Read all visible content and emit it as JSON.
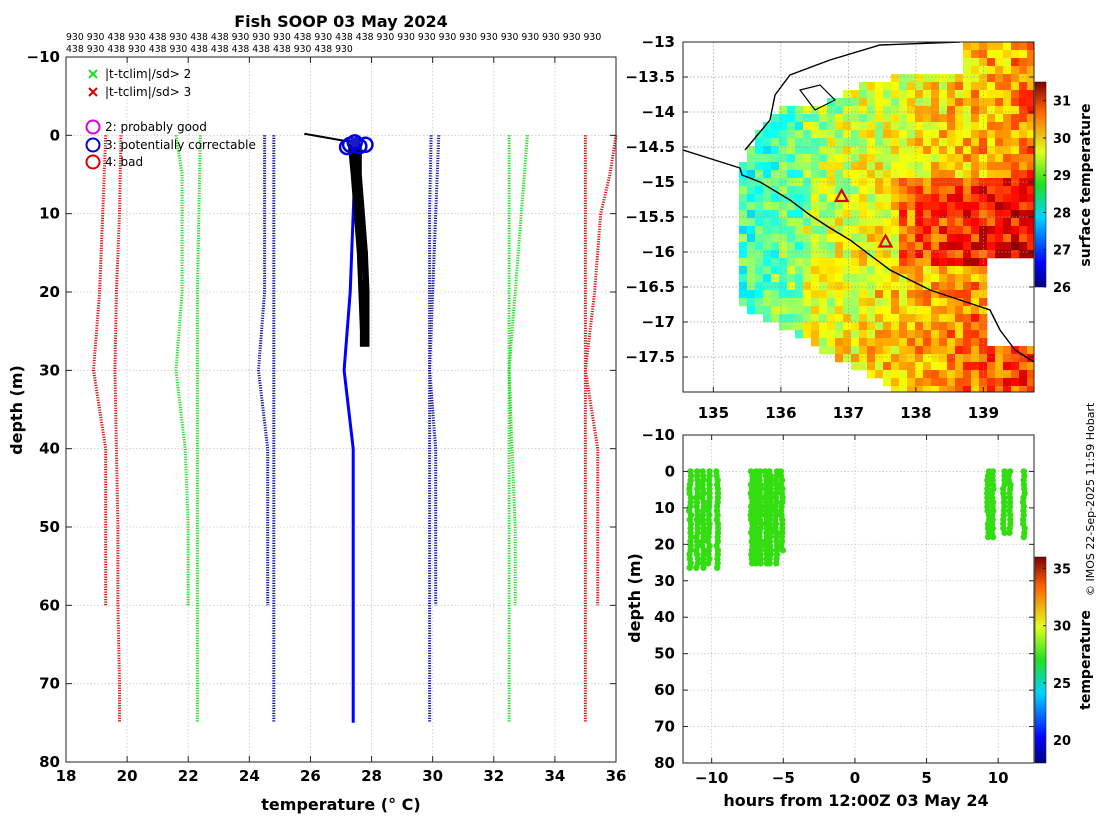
{
  "figure": {
    "title": "Fish SOOP 03 May 2024",
    "credit": "© IMOS 22-Sep-2025 11:59 Hobart",
    "id_row1": "930 930 438 930 438 930 438 438 930 930 930 438 930 438 438 930 930 930 930 930 930 930 930 930 930 930",
    "id_row2": "438 930 438 930 438 930 438 438 438 438 438 930 438 930"
  },
  "chart_data": [
    {
      "name": "profiles",
      "type": "line",
      "xlabel": "temperature (° C)",
      "ylabel": "depth (m)",
      "xlim": [
        18,
        36
      ],
      "ylim": [
        -10,
        80
      ],
      "y_reversed": true,
      "xticks": [
        18,
        20,
        22,
        24,
        26,
        28,
        30,
        32,
        34,
        36
      ],
      "yticks": [
        -10,
        0,
        10,
        20,
        30,
        40,
        50,
        60,
        70,
        80
      ],
      "grid": true,
      "legend_location": "top-left",
      "legend": [
        {
          "marker": "x",
          "color": "#22dd22",
          "label": "|t-tclim|/sd> 2"
        },
        {
          "marker": "x",
          "color": "#dd0000",
          "label": "|t-tclim|/sd> 3"
        },
        {
          "marker": "o",
          "color": "#dd00dd",
          "label": "2: probably good"
        },
        {
          "marker": "o",
          "color": "#0000cc",
          "label": "3: potentially correctable"
        },
        {
          "marker": "o",
          "color": "#dd0000",
          "label": "4: bad"
        }
      ],
      "climatology_lines": [
        {
          "color": "#dd1111",
          "points": [
            [
              19.8,
              0
            ],
            [
              19.75,
              10
            ],
            [
              19.65,
              20
            ],
            [
              19.6,
              30
            ],
            [
              19.65,
              40
            ],
            [
              19.7,
              50
            ],
            [
              19.7,
              60
            ],
            [
              19.75,
              70
            ],
            [
              19.75,
              75
            ]
          ]
        },
        {
          "color": "#dd1111",
          "points": [
            [
              19.3,
              0
            ],
            [
              19.2,
              10
            ],
            [
              19.1,
              20
            ],
            [
              18.9,
              30
            ],
            [
              19.3,
              40
            ],
            [
              19.3,
              50
            ],
            [
              19.3,
              60
            ]
          ]
        },
        {
          "color": "#22dd22",
          "points": [
            [
              22.4,
              0
            ],
            [
              22.35,
              10
            ],
            [
              22.3,
              20
            ],
            [
              22.3,
              30
            ],
            [
              22.3,
              40
            ],
            [
              22.3,
              50
            ],
            [
              22.3,
              60
            ],
            [
              22.3,
              70
            ],
            [
              22.3,
              75
            ]
          ]
        },
        {
          "color": "#22dd22",
          "points": [
            [
              21.6,
              0
            ],
            [
              21.8,
              5
            ],
            [
              21.8,
              10
            ],
            [
              21.8,
              20
            ],
            [
              21.6,
              30
            ],
            [
              21.9,
              40
            ],
            [
              22.0,
              50
            ],
            [
              22.0,
              60
            ]
          ]
        },
        {
          "color": "#1111aa",
          "points": [
            [
              24.8,
              0
            ],
            [
              24.8,
              10
            ],
            [
              24.8,
              20
            ],
            [
              24.8,
              30
            ],
            [
              24.8,
              40
            ],
            [
              24.8,
              50
            ],
            [
              24.8,
              60
            ],
            [
              24.8,
              70
            ],
            [
              24.8,
              75
            ]
          ]
        },
        {
          "color": "#1111aa",
          "points": [
            [
              24.5,
              0
            ],
            [
              24.5,
              10
            ],
            [
              24.5,
              20
            ],
            [
              24.3,
              30
            ],
            [
              24.6,
              40
            ],
            [
              24.6,
              50
            ],
            [
              24.6,
              60
            ]
          ]
        },
        {
          "color": "#1111aa",
          "points": [
            [
              29.95,
              0
            ],
            [
              29.9,
              10
            ],
            [
              29.9,
              20
            ],
            [
              29.9,
              30
            ],
            [
              29.9,
              40
            ],
            [
              29.9,
              50
            ],
            [
              29.9,
              60
            ],
            [
              29.9,
              70
            ],
            [
              29.9,
              75
            ]
          ]
        },
        {
          "color": "#1111aa",
          "points": [
            [
              30.2,
              0
            ],
            [
              30.1,
              10
            ],
            [
              30.0,
              20
            ],
            [
              29.9,
              30
            ],
            [
              30.1,
              40
            ],
            [
              30.1,
              50
            ],
            [
              30.1,
              60
            ]
          ]
        },
        {
          "color": "#22dd22",
          "points": [
            [
              32.5,
              0
            ],
            [
              32.5,
              10
            ],
            [
              32.5,
              20
            ],
            [
              32.5,
              30
            ],
            [
              32.5,
              40
            ],
            [
              32.5,
              50
            ],
            [
              32.5,
              60
            ],
            [
              32.5,
              70
            ],
            [
              32.5,
              75
            ]
          ]
        },
        {
          "color": "#22dd22",
          "points": [
            [
              33.1,
              0
            ],
            [
              32.9,
              10
            ],
            [
              32.7,
              20
            ],
            [
              32.5,
              30
            ],
            [
              32.6,
              40
            ],
            [
              32.7,
              50
            ],
            [
              32.7,
              60
            ]
          ]
        },
        {
          "color": "#dd1111",
          "points": [
            [
              35.0,
              0
            ],
            [
              35.0,
              10
            ],
            [
              35.0,
              20
            ],
            [
              35.0,
              30
            ],
            [
              35.0,
              40
            ],
            [
              35.0,
              50
            ],
            [
              35.0,
              60
            ],
            [
              35.0,
              70
            ],
            [
              35.0,
              75
            ]
          ]
        },
        {
          "color": "#dd1111",
          "points": [
            [
              36.0,
              0
            ],
            [
              35.8,
              5
            ],
            [
              35.5,
              10
            ],
            [
              35.3,
              20
            ],
            [
              35.0,
              30
            ],
            [
              35.4,
              40
            ],
            [
              35.4,
              50
            ],
            [
              35.4,
              60
            ]
          ]
        }
      ],
      "profile_blue": [
        [
          27.5,
          0
        ],
        [
          27.4,
          10
        ],
        [
          27.3,
          20
        ],
        [
          27.1,
          30
        ],
        [
          27.4,
          40
        ],
        [
          27.4,
          50
        ],
        [
          27.4,
          60
        ],
        [
          27.4,
          70
        ],
        [
          27.4,
          75
        ]
      ],
      "profiles_black": [
        [
          [
            27.3,
            1
          ],
          [
            27.4,
            5
          ],
          [
            27.5,
            10
          ],
          [
            27.6,
            15
          ],
          [
            27.65,
            20
          ],
          [
            27.7,
            25
          ],
          [
            27.7,
            27
          ]
        ],
        [
          [
            27.6,
            1
          ],
          [
            27.6,
            5
          ],
          [
            27.7,
            10
          ],
          [
            27.8,
            15
          ],
          [
            27.85,
            20
          ],
          [
            27.85,
            27
          ]
        ],
        [
          [
            27.5,
            1
          ],
          [
            27.5,
            5
          ],
          [
            27.6,
            10
          ],
          [
            27.8,
            15
          ],
          [
            27.8,
            20
          ],
          [
            27.8,
            26
          ]
        ],
        [
          [
            27.4,
            1
          ],
          [
            27.5,
            5
          ],
          [
            27.6,
            10
          ],
          [
            27.7,
            15
          ],
          [
            27.8,
            18
          ]
        ]
      ],
      "surface_line": [
        [
          25.8,
          -0.2
        ],
        [
          27.4,
          0.9
        ]
      ],
      "flag_circles": [
        [
          27.3,
          1.2
        ],
        [
          27.45,
          0.9
        ],
        [
          27.6,
          1.4
        ],
        [
          27.8,
          1.2
        ],
        [
          27.2,
          1.5
        ]
      ]
    },
    {
      "name": "sst_map",
      "type": "heatmap",
      "xticks": [
        135,
        136,
        137,
        138,
        139
      ],
      "yticks": [
        -13,
        -13.5,
        -14,
        -14.5,
        -15,
        -15.5,
        -16,
        -16.5,
        -17,
        -17.5
      ],
      "xlim": [
        134.55,
        139.75
      ],
      "ylim": [
        -18.0,
        -13.0
      ],
      "colorbar_label": "surface temperature",
      "colorbar_range": [
        26,
        31.5
      ],
      "colorbar_ticks": [
        26,
        27,
        28,
        29,
        30,
        31
      ],
      "stations": [
        [
          136.9,
          -15.2
        ],
        [
          137.55,
          -15.85
        ]
      ]
    },
    {
      "name": "time_depth",
      "type": "scatter",
      "xlabel": "hours from 12:00Z 03 May 24",
      "ylabel": "depth (m)",
      "xlim": [
        -12,
        12.5
      ],
      "ylim": [
        -10,
        80
      ],
      "y_reversed": true,
      "xticks": [
        -10,
        -5,
        0,
        5,
        10
      ],
      "yticks": [
        -10,
        0,
        10,
        20,
        30,
        40,
        50,
        60,
        70,
        80
      ],
      "colorbar_label": "temperature",
      "colorbar_range": [
        18,
        36
      ],
      "colorbar_ticks": [
        20,
        25,
        30,
        35
      ],
      "casts": [
        {
          "hour": -11.5,
          "max_depth": 27
        },
        {
          "hour": -11.0,
          "max_depth": 27
        },
        {
          "hour": -10.6,
          "max_depth": 27
        },
        {
          "hour": -10.2,
          "max_depth": 26
        },
        {
          "hour": -9.6,
          "max_depth": 27
        },
        {
          "hour": -7.2,
          "max_depth": 26
        },
        {
          "hour": -6.9,
          "max_depth": 26
        },
        {
          "hour": -6.6,
          "max_depth": 26
        },
        {
          "hour": -6.2,
          "max_depth": 26
        },
        {
          "hour": -5.9,
          "max_depth": 26
        },
        {
          "hour": -5.5,
          "max_depth": 26
        },
        {
          "hour": -5.1,
          "max_depth": 22
        },
        {
          "hour": 9.3,
          "max_depth": 18
        },
        {
          "hour": 9.6,
          "max_depth": 18
        },
        {
          "hour": 10.4,
          "max_depth": 17
        },
        {
          "hour": 10.8,
          "max_depth": 17
        },
        {
          "hour": 11.8,
          "max_depth": 19
        }
      ]
    }
  ]
}
